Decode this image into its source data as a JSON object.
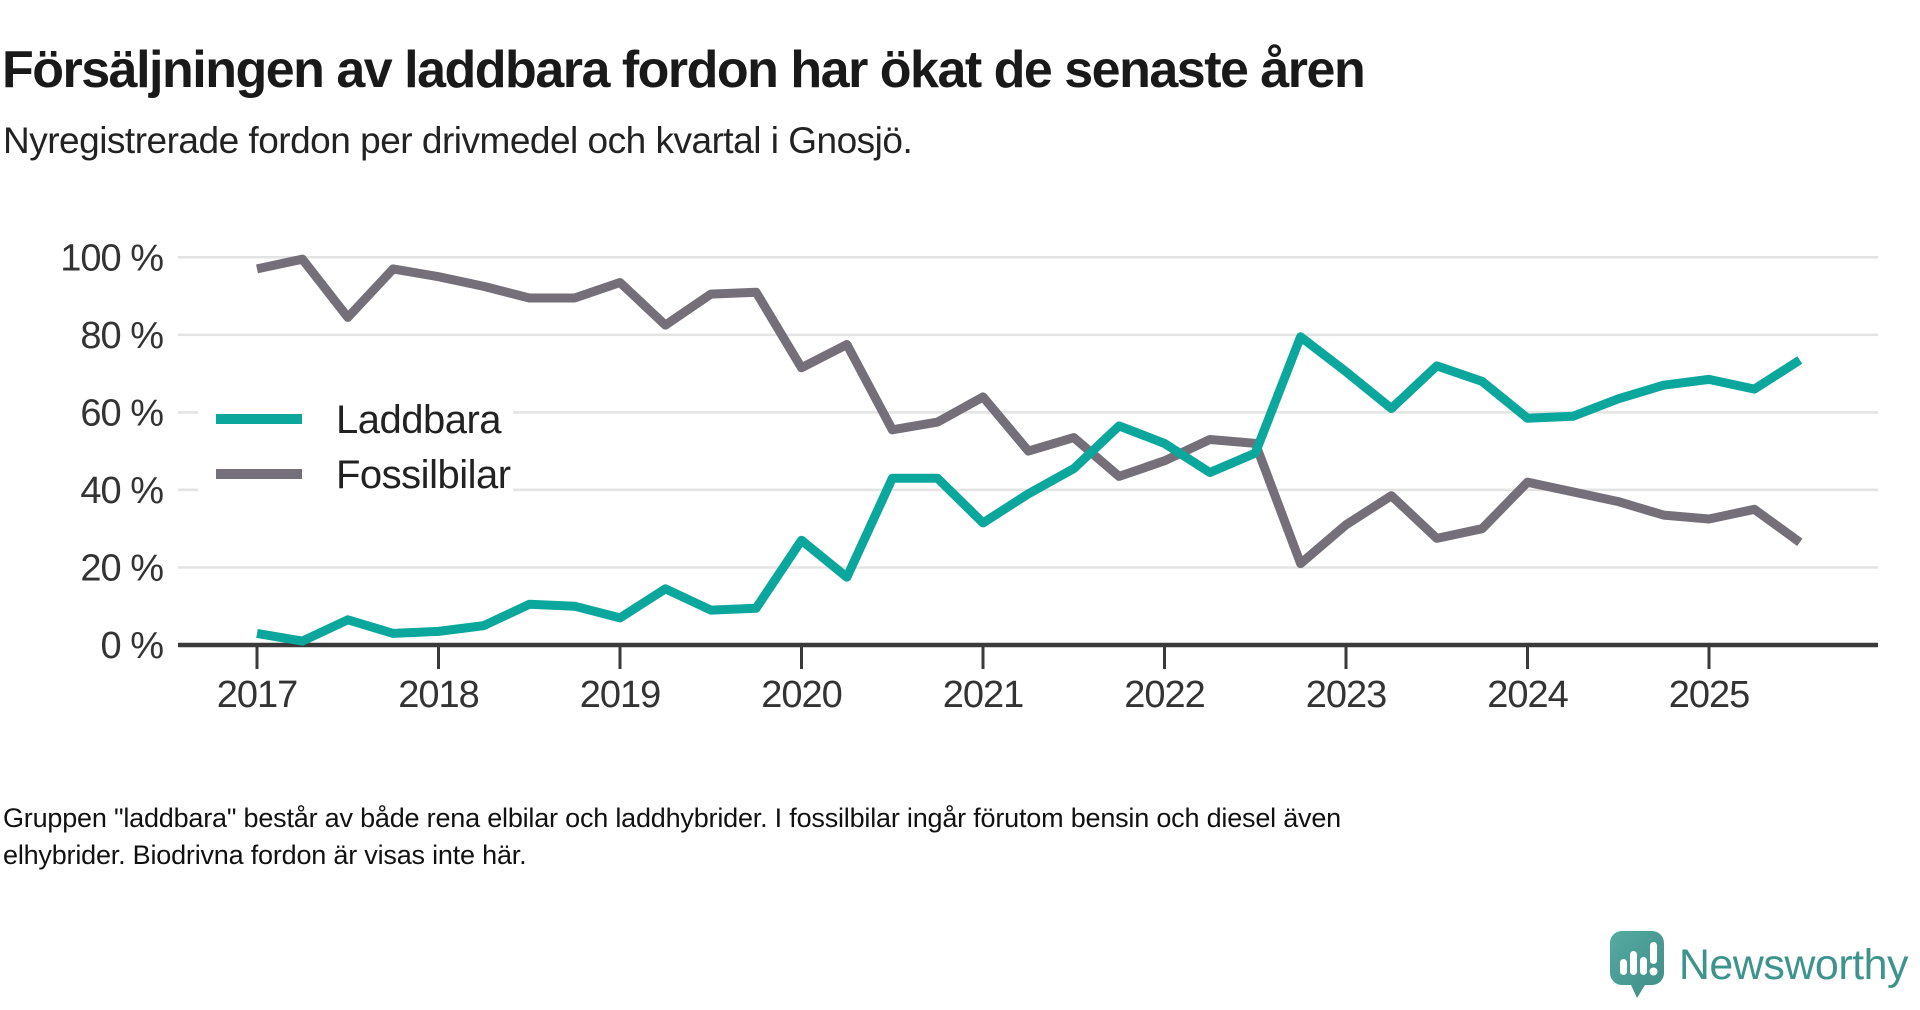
{
  "title": "Försäljningen av laddbara fordon har ökat de senaste åren",
  "subtitle": "Nyregistrerade fordon per drivmedel och kvartal i Gnosjö.",
  "footnote_line1": "Gruppen \"laddbara\" består av både rena elbilar och laddhybrider. I fossilbilar ingår förutom bensin och diesel även",
  "footnote_line2": "elhybrider. Biodrivna fordon är visas inte här.",
  "branding": {
    "logo_text": "Newsworthy",
    "logo_icon": "newsworthy-speech-bubble-bar-chart-icon",
    "logo_color": "#3e948c",
    "logo_bubble_color": "#4a9f97"
  },
  "chart_data": {
    "type": "line",
    "title": "Försäljningen av laddbara fordon har ökat de senaste åren",
    "subtitle": "Nyregistrerade fordon per drivmedel och kvartal i Gnosjö.",
    "xlabel": "",
    "ylabel": "",
    "ylim": [
      0,
      100
    ],
    "grid": true,
    "legend_position": "inside-left",
    "unit": "%",
    "x_tick_labels": [
      "2017",
      "2018",
      "2019",
      "2020",
      "2021",
      "2022",
      "2023",
      "2024",
      "2025"
    ],
    "y_tick_values": [
      0,
      20,
      40,
      60,
      80,
      100
    ],
    "y_tick_labels": [
      "0 %",
      "20 %",
      "40 %",
      "60 %",
      "80 %",
      "100 %"
    ],
    "x_quarters": [
      "2017-Q1",
      "2017-Q2",
      "2017-Q3",
      "2017-Q4",
      "2018-Q1",
      "2018-Q2",
      "2018-Q3",
      "2018-Q4",
      "2019-Q1",
      "2019-Q2",
      "2019-Q3",
      "2019-Q4",
      "2020-Q1",
      "2020-Q2",
      "2020-Q3",
      "2020-Q4",
      "2021-Q1",
      "2021-Q2",
      "2021-Q3",
      "2021-Q4",
      "2022-Q1",
      "2022-Q2",
      "2022-Q3",
      "2022-Q4",
      "2023-Q1",
      "2023-Q2",
      "2023-Q3",
      "2023-Q4",
      "2024-Q1",
      "2024-Q2",
      "2024-Q3",
      "2024-Q4",
      "2025-Q1",
      "2025-Q2",
      "2025-Q3"
    ],
    "series": [
      {
        "name": "Laddbara",
        "color": "#0ba79d",
        "values": [
          3,
          1,
          6.5,
          3,
          3.5,
          5,
          10.5,
          10,
          7,
          14.5,
          9,
          9.5,
          27,
          17.5,
          43,
          43,
          31.5,
          39,
          45.5,
          56.5,
          52,
          44.5,
          49.5,
          79.5,
          70.5,
          61,
          72,
          68,
          58.5,
          59,
          63.5,
          67,
          68.5,
          66,
          73.5
        ]
      },
      {
        "name": "Fossilbilar",
        "color": "#746f78",
        "values": [
          97,
          99.5,
          84.5,
          97,
          95,
          92.5,
          89.5,
          89.5,
          93.5,
          82.5,
          90.5,
          91,
          71.5,
          77.5,
          55.5,
          57.5,
          64,
          50,
          53.5,
          43.5,
          47.5,
          53,
          52,
          21,
          31,
          38.5,
          27.5,
          30,
          42,
          39.5,
          37,
          33.5,
          32.5,
          35,
          26.5
        ]
      }
    ]
  }
}
